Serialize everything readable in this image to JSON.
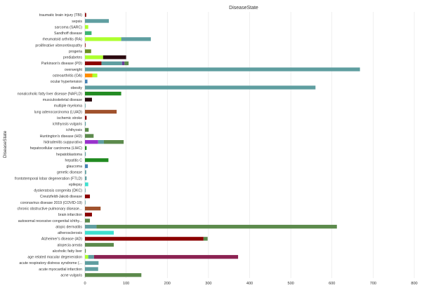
{
  "chart_data": {
    "type": "bar",
    "orientation": "horizontal",
    "stacked": true,
    "title": "DiseaseState",
    "ylabel": "DiseaseState",
    "xlabel": "",
    "xlim": [
      0,
      800
    ],
    "xticks": [
      0,
      100,
      200,
      300,
      400,
      500,
      600,
      700,
      800
    ],
    "grid": true,
    "categories": [
      {
        "name": "traumatic brain injury (TBI)",
        "segments": [
          {
            "value": 3,
            "color": "#8b0000"
          }
        ]
      },
      {
        "name": "sepsis",
        "segments": [
          {
            "value": 58,
            "color": "#5f9ea0"
          }
        ]
      },
      {
        "name": "sarcoma (SARC)",
        "segments": [
          {
            "value": 8,
            "color": "#adff2f"
          }
        ]
      },
      {
        "name": "Sandhoff disease",
        "segments": [
          {
            "value": 16,
            "color": "#3cb371"
          }
        ]
      },
      {
        "name": "rheumatoid arthritis (RA)",
        "segments": [
          {
            "value": 88,
            "color": "#adff2f"
          },
          {
            "value": 72,
            "color": "#5f9ea0"
          }
        ]
      },
      {
        "name": "proliferative vitreoretinopathy",
        "segments": [
          {
            "value": 1,
            "color": "#8b0000"
          }
        ]
      },
      {
        "name": "progeria",
        "segments": [
          {
            "value": 15,
            "color": "#6b8e23"
          }
        ]
      },
      {
        "name": "prediabetes",
        "segments": [
          {
            "value": 44,
            "color": "#adff2f"
          },
          {
            "value": 56,
            "color": "#2b0a10"
          }
        ]
      },
      {
        "name": "Parkinson's disease (PD)",
        "segments": [
          {
            "value": 40,
            "color": "#8b0000"
          },
          {
            "value": 50,
            "color": "#5f9ea0"
          },
          {
            "value": 6,
            "color": "#6a3d9a"
          },
          {
            "value": 10,
            "color": "#5c8a4c"
          }
        ]
      },
      {
        "name": "overweight",
        "segments": [
          {
            "value": 668,
            "color": "#5f9ea0"
          }
        ]
      },
      {
        "name": "osteoarthritis (OA)",
        "segments": [
          {
            "value": 18,
            "color": "#ff8c00"
          },
          {
            "value": 12,
            "color": "#adff2f"
          }
        ]
      },
      {
        "name": "ocular hypertension",
        "segments": [
          {
            "value": 6,
            "color": "#4682b4"
          }
        ]
      },
      {
        "name": "obesity",
        "segments": [
          {
            "value": 560,
            "color": "#5f9ea0"
          }
        ]
      },
      {
        "name": "nonalcoholic fatty liver disease (NAFLD)",
        "segments": [
          {
            "value": 88,
            "color": "#228b22"
          }
        ]
      },
      {
        "name": "musculoskeletal disease",
        "segments": [
          {
            "value": 17,
            "color": "#2b0a10"
          }
        ]
      },
      {
        "name": "multiple myeloma",
        "segments": [
          {
            "value": 1,
            "color": "#5f9ea0"
          }
        ]
      },
      {
        "name": "lung adenocarcinoma (LUAD)",
        "segments": [
          {
            "value": 77,
            "color": "#a0522d"
          }
        ]
      },
      {
        "name": "ischemic stroke",
        "segments": [
          {
            "value": 4,
            "color": "#8b0000"
          }
        ]
      },
      {
        "name": "ichthyosis vulgaris",
        "segments": [
          {
            "value": 2,
            "color": "#5f9ea0"
          }
        ]
      },
      {
        "name": "ichthyosis",
        "segments": [
          {
            "value": 9,
            "color": "#5c8a4c"
          }
        ]
      },
      {
        "name": "Huntington's disease (HD)",
        "segments": [
          {
            "value": 21,
            "color": "#5c8a4c"
          }
        ]
      },
      {
        "name": "hidradenitis suppurativa",
        "segments": [
          {
            "value": 32,
            "color": "#9932cc"
          },
          {
            "value": 14,
            "color": "#5f9ea0"
          },
          {
            "value": 48,
            "color": "#5c8a4c"
          }
        ]
      },
      {
        "name": "hepatocellular carcinoma (LIHC)",
        "segments": [
          {
            "value": 4,
            "color": "#228b22"
          }
        ]
      },
      {
        "name": "hepatoblastoma",
        "segments": [
          {
            "value": 2,
            "color": "#5f9ea0"
          }
        ]
      },
      {
        "name": "hepatitis C",
        "segments": [
          {
            "value": 57,
            "color": "#228b22"
          }
        ]
      },
      {
        "name": "glaucoma",
        "segments": [
          {
            "value": 7,
            "color": "#4682b4"
          }
        ]
      },
      {
        "name": "genetic disease",
        "segments": [
          {
            "value": 3,
            "color": "#5f9ea0"
          }
        ]
      },
      {
        "name": "frontotemporal lobar degeneration (FTLD)",
        "segments": [
          {
            "value": 4,
            "color": "#5f9ea0"
          }
        ]
      },
      {
        "name": "epilepsy",
        "segments": [
          {
            "value": 8,
            "color": "#40e0d0"
          }
        ]
      },
      {
        "name": "dyskeratosis congenita (DKC)",
        "segments": [
          {
            "value": 1,
            "color": "#5f9ea0"
          }
        ]
      },
      {
        "name": "Creutzfeldt-Jakob disease",
        "segments": [
          {
            "value": 12,
            "color": "#8b0000"
          }
        ]
      },
      {
        "name": "coronavirus disease 2019 (COVID-19)",
        "segments": [
          {
            "value": 1,
            "color": "#5f9ea0"
          }
        ]
      },
      {
        "name": "chronic obstructive pulmonary disease...",
        "segments": [
          {
            "value": 38,
            "color": "#a0522d"
          }
        ]
      },
      {
        "name": "brain infarction",
        "segments": [
          {
            "value": 17,
            "color": "#8b0000"
          }
        ]
      },
      {
        "name": "autosomal recessive congenital ichthy...",
        "segments": [
          {
            "value": 12,
            "color": "#5c8a4c"
          }
        ]
      },
      {
        "name": "atopic dermatitis",
        "segments": [
          {
            "value": 28,
            "color": "#5f9ea0"
          },
          {
            "value": 584,
            "color": "#5c8a4c"
          }
        ]
      },
      {
        "name": "atherosclerosis",
        "segments": [
          {
            "value": 70,
            "color": "#40e0d0"
          }
        ]
      },
      {
        "name": "Alzheimer's disease (AD)",
        "segments": [
          {
            "value": 288,
            "color": "#8b0000"
          },
          {
            "value": 10,
            "color": "#5c8a4c"
          }
        ]
      },
      {
        "name": "alopecia areata",
        "segments": [
          {
            "value": 70,
            "color": "#5c8a4c"
          }
        ]
      },
      {
        "name": "alcoholic fatty liver",
        "segments": [
          {
            "value": 2,
            "color": "#5c8a4c"
          }
        ]
      },
      {
        "name": "age related macular degeneration",
        "segments": [
          {
            "value": 8,
            "color": "#adff2f"
          },
          {
            "value": 14,
            "color": "#5f9ea0"
          },
          {
            "value": 350,
            "color": "#8b2252"
          }
        ]
      },
      {
        "name": "acute respiratory distress syndrome (...",
        "segments": [
          {
            "value": 33,
            "color": "#5f9ea0"
          }
        ]
      },
      {
        "name": "acute myocardial infarction",
        "segments": [
          {
            "value": 32,
            "color": "#5f9ea0"
          }
        ]
      },
      {
        "name": "acne vulgaris",
        "segments": [
          {
            "value": 137,
            "color": "#5c8a4c"
          }
        ]
      }
    ]
  }
}
